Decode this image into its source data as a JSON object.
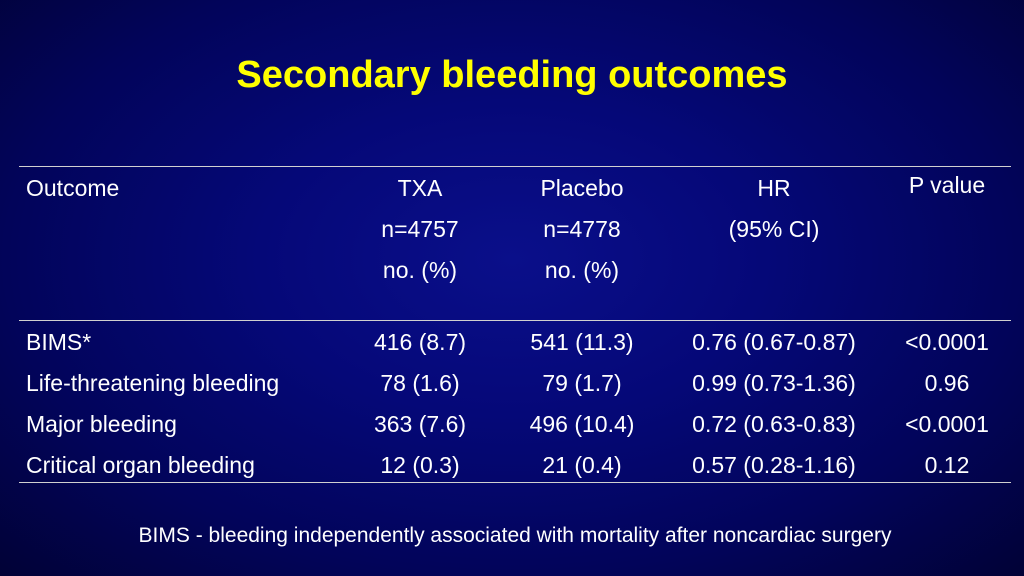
{
  "title": "Secondary bleeding outcomes",
  "table": {
    "headers": {
      "outcome": "Outcome",
      "txa": [
        "TXA",
        "n=4757",
        "no. (%)"
      ],
      "placebo": [
        "Placebo",
        "n=4778",
        "no. (%)"
      ],
      "hr": [
        "HR",
        "(95% CI)"
      ],
      "p": "P value"
    },
    "rows": [
      {
        "outcome": "BIMS*",
        "txa": "416 (8.7)",
        "placebo": "541 (11.3)",
        "hr": "0.76 (0.67-0.87)",
        "p": "<0.0001"
      },
      {
        "outcome": "Life-threatening bleeding",
        "txa": "78 (1.6)",
        "placebo": "79 (1.7)",
        "hr": "0.99 (0.73-1.36)",
        "p": "0.96"
      },
      {
        "outcome": "Major bleeding",
        "txa": "363 (7.6)",
        "placebo": "496 (10.4)",
        "hr": "0.72 (0.63-0.83)",
        "p": "<0.0001"
      },
      {
        "outcome": "Critical organ bleeding",
        "txa": "12 (0.3)",
        "placebo": "21 (0.4)",
        "hr": "0.57 (0.28-1.16)",
        "p": "0.12"
      }
    ]
  },
  "footnote": "BIMS - bleeding independently associated with mortality after noncardiac surgery",
  "colors": {
    "title": "#ffff00",
    "text": "#ffffff",
    "background": "#050878",
    "rule": "#d0d0d0"
  }
}
